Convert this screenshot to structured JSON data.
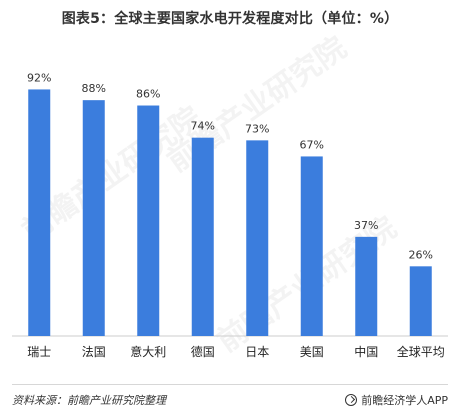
{
  "header": {
    "title": "图表5：全球主要国家水电开发程度对比（单位：%）"
  },
  "watermarks": [
    "前瞻产业研究院",
    "前瞻产业研究院",
    "前瞻产业研究院"
  ],
  "footer": {
    "source": "资料来源：前瞻产业研究院整理",
    "brand": "前瞻经济学人APP",
    "brand_icon": "circle-check-icon"
  },
  "colors": {
    "bar": "#3b7ddd",
    "label": "#333333",
    "axis": "#cccccc"
  },
  "chart_data": {
    "type": "bar",
    "title": "图表5：全球主要国家水电开发程度对比（单位：%）",
    "xlabel": "",
    "ylabel": "",
    "categories": [
      "瑞士",
      "法国",
      "意大利",
      "德国",
      "日本",
      "美国",
      "中国",
      "全球平均"
    ],
    "values": [
      92,
      88,
      86,
      74,
      73,
      67,
      37,
      26
    ],
    "value_labels": [
      "92%",
      "88%",
      "86%",
      "74%",
      "73%",
      "67%",
      "37%",
      "26%"
    ],
    "ylim": [
      0,
      100
    ],
    "grid": false,
    "legend": "none"
  }
}
